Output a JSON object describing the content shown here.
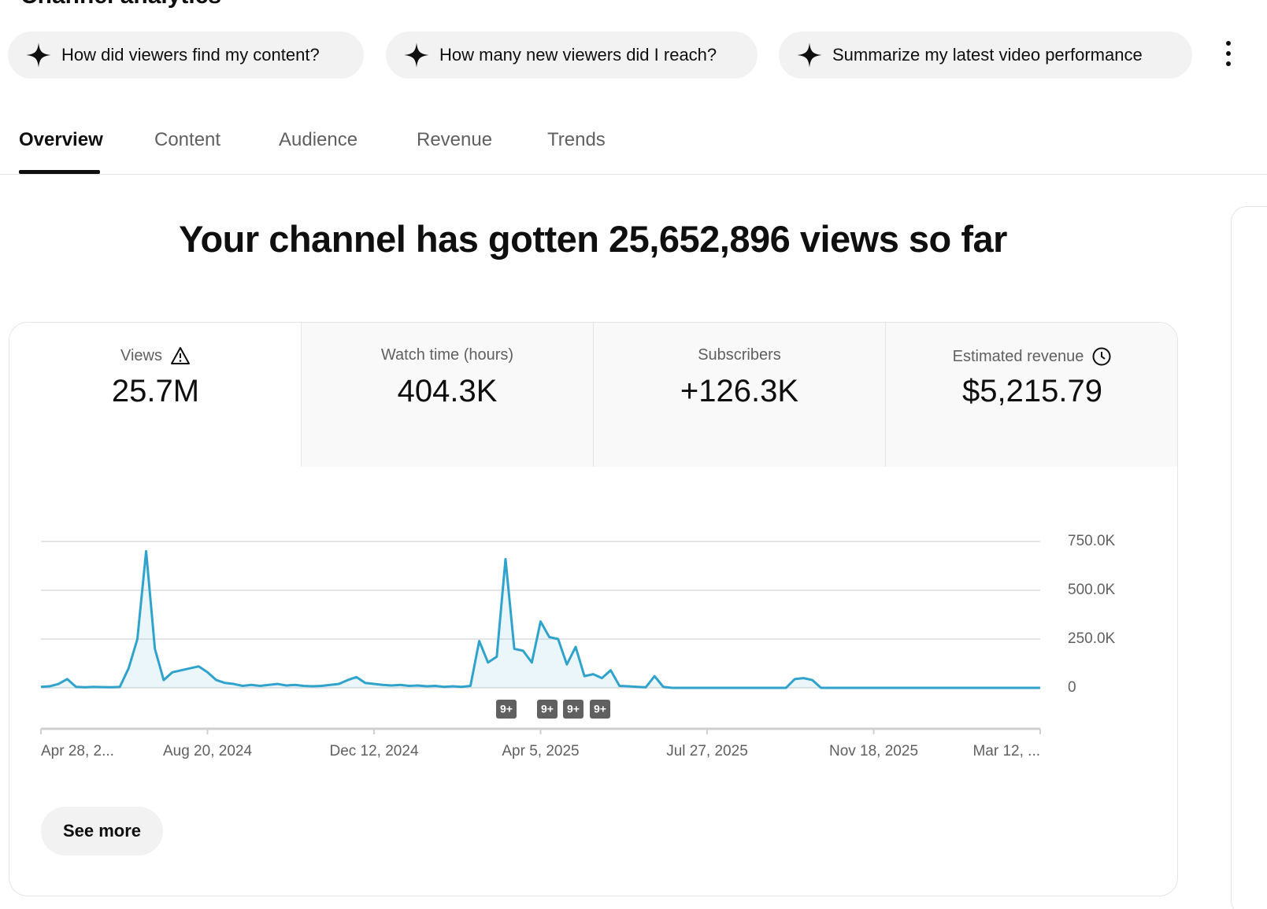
{
  "page_title": "Channel analytics",
  "chips": [
    "How did viewers find my content?",
    "How many new viewers did I reach?",
    "Summarize my latest video performance"
  ],
  "tabs": [
    "Overview",
    "Content",
    "Audience",
    "Revenue",
    "Trends"
  ],
  "headline": "Your channel has gotten 25,652,896 views so far",
  "metrics": [
    {
      "label": "Views",
      "value": "25.7M"
    },
    {
      "label": "Watch time (hours)",
      "value": "404.3K"
    },
    {
      "label": "Subscribers",
      "value": "+126.3K"
    },
    {
      "label": "Estimated revenue",
      "value": "$5,215.79"
    }
  ],
  "see_more": "See more",
  "chart_data": {
    "type": "area",
    "categories": [
      "Apr 28, 2...",
      null,
      null,
      null,
      null,
      null,
      null,
      null,
      null,
      null,
      null,
      null,
      null,
      null,
      null,
      null,
      null,
      null,
      null,
      "Aug 20, 2024",
      null,
      null,
      null,
      null,
      null,
      null,
      null,
      null,
      null,
      null,
      null,
      null,
      null,
      null,
      null,
      null,
      null,
      null,
      "Dec 12, 2024",
      null,
      null,
      null,
      null,
      null,
      null,
      null,
      null,
      null,
      null,
      null,
      null,
      null,
      null,
      null,
      null,
      null,
      null,
      "Apr 5, 2025",
      null,
      null,
      null,
      null,
      null,
      null,
      null,
      null,
      null,
      null,
      null,
      null,
      null,
      null,
      null,
      null,
      null,
      null,
      "Jul 27, 2025",
      null,
      null,
      null,
      null,
      null,
      null,
      null,
      null,
      null,
      null,
      null,
      null,
      null,
      null,
      null,
      null,
      null,
      null,
      "Nov 18, 2025",
      null,
      null,
      null,
      null,
      null,
      null,
      null,
      null,
      null,
      null,
      null,
      null,
      null,
      null,
      null,
      null,
      null,
      null,
      "Mar 12, ..."
    ],
    "series": [
      {
        "name": "Views",
        "color": "#2fa3cc",
        "values": [
          5000,
          8000,
          20000,
          45000,
          5000,
          3000,
          5000,
          4000,
          3000,
          5000,
          100000,
          250000,
          700000,
          200000,
          40000,
          80000,
          90000,
          100000,
          110000,
          80000,
          40000,
          25000,
          20000,
          10000,
          15000,
          10000,
          15000,
          20000,
          12000,
          15000,
          10000,
          8000,
          10000,
          15000,
          20000,
          40000,
          55000,
          25000,
          20000,
          15000,
          12000,
          15000,
          10000,
          12000,
          8000,
          10000,
          5000,
          8000,
          5000,
          10000,
          240000,
          130000,
          160000,
          660000,
          200000,
          190000,
          130000,
          340000,
          260000,
          250000,
          120000,
          210000,
          60000,
          70000,
          50000,
          90000,
          10000,
          8000,
          5000,
          3000,
          60000,
          5000,
          0,
          0,
          0,
          0,
          0,
          0,
          0,
          0,
          0,
          0,
          0,
          0,
          0,
          0,
          45000,
          50000,
          40000,
          0,
          0,
          0,
          0,
          0,
          0,
          0,
          0,
          0,
          0,
          0,
          0,
          0,
          0,
          0,
          0,
          0,
          0,
          0,
          0,
          0,
          0,
          0,
          0,
          0,
          0
        ]
      }
    ],
    "ylim": [
      0,
      750000
    ],
    "yticks": [
      0,
      {
        "value": 250000,
        "label": "250.0K"
      },
      {
        "value": 500000,
        "label": "500.0K"
      },
      {
        "value": 750000,
        "label": "750.0K"
      }
    ],
    "grid": true,
    "annotations": [
      "9+",
      "9+",
      "9+",
      "9+"
    ]
  }
}
